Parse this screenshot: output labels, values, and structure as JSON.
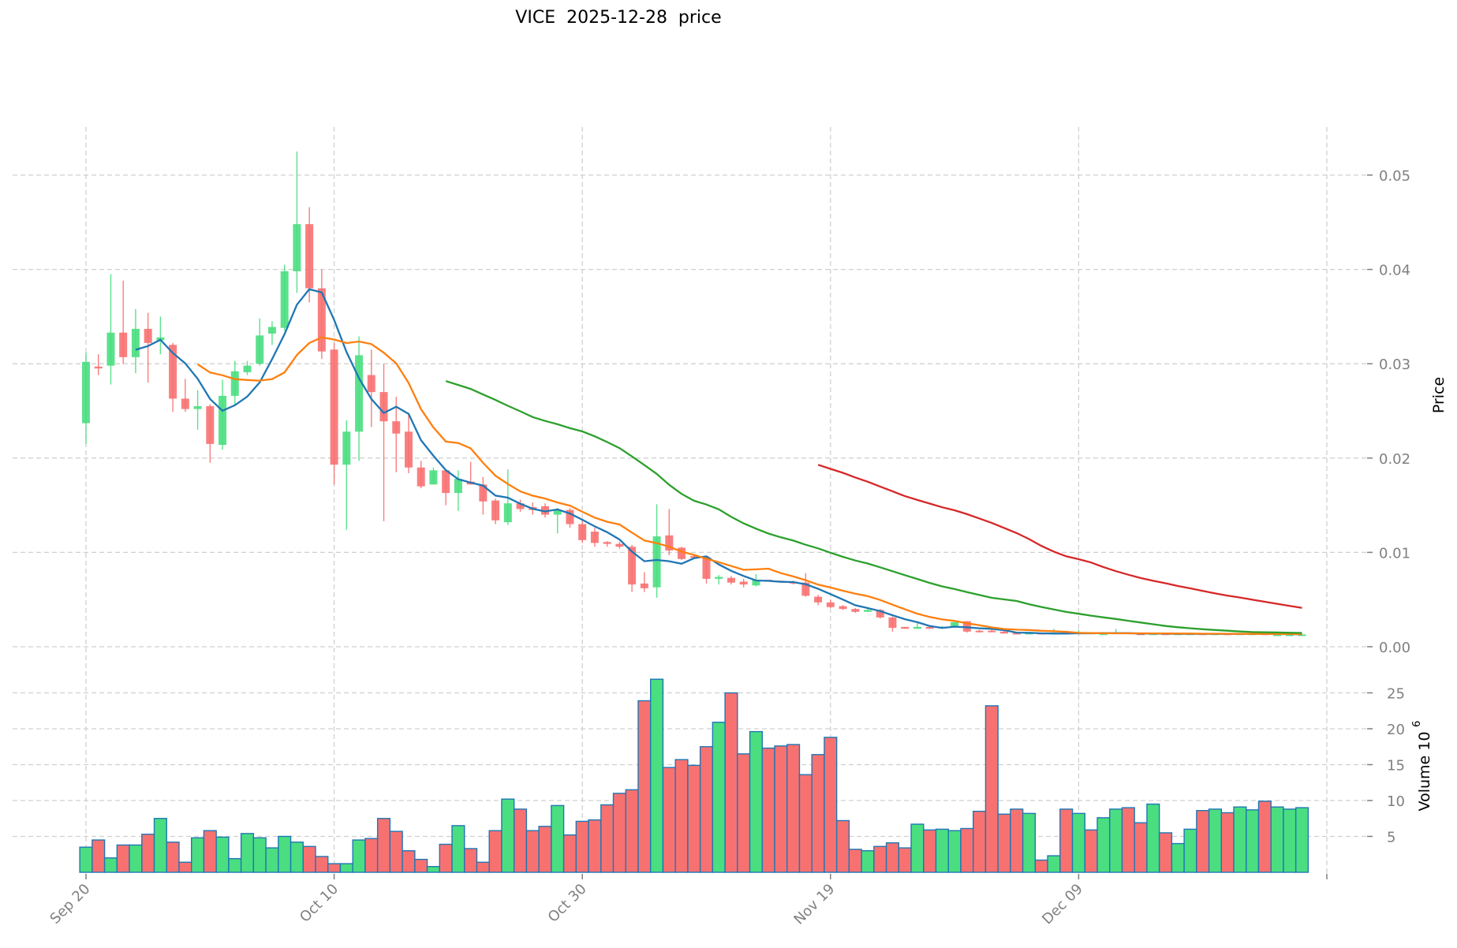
{
  "title": "VICE  2025-12-28  price",
  "chart_data": {
    "type": "candlestick",
    "title": "VICE  2025-12-28  price",
    "ticker": "VICE",
    "date": "2025-12-28",
    "start_date": "2025-09-20",
    "x_tick_labels": [
      {
        "label": "Sep 20",
        "index": 0
      },
      {
        "label": "Oct 10",
        "index": 20
      },
      {
        "label": "Oct 30",
        "index": 40
      },
      {
        "label": "Nov 19",
        "index": 60
      },
      {
        "label": "Dec 09",
        "index": 80
      }
    ],
    "price_axis": {
      "label": "Price",
      "ticks": [
        "0.00",
        "0.01",
        "0.02",
        "0.03",
        "0.04",
        "0.05"
      ],
      "ylim": [
        0,
        0.0545
      ],
      "grid": true,
      "position": "right"
    },
    "volume_axis": {
      "label": "Volume",
      "exponent_label": "10",
      "exponent": "6",
      "ticks": [
        "5",
        "10",
        "15",
        "20",
        "25"
      ],
      "ylim": [
        0,
        28.5
      ],
      "grid": true,
      "position": "right"
    },
    "colors": {
      "up": "#4ade80",
      "down": "#f87171",
      "volume_edge": "#1f77b4",
      "grid": "#d0d0d0",
      "tick_text": "#808080"
    },
    "moving_averages": [
      {
        "name": "MA5",
        "period": 5,
        "color": "#1f77b4"
      },
      {
        "name": "MA10",
        "period": 10,
        "color": "#ff7f0e"
      },
      {
        "name": "MA30",
        "period": 30,
        "color": "#2ca02c"
      },
      {
        "name": "MA60",
        "period": 60,
        "color": "#d62728"
      }
    ],
    "ohlc": [
      [
        0.0237,
        0.0312,
        0.0215,
        0.0302
      ],
      [
        0.0297,
        0.031,
        0.0288,
        0.0295
      ],
      [
        0.0298,
        0.0395,
        0.0278,
        0.0333
      ],
      [
        0.0333,
        0.0388,
        0.03,
        0.0307
      ],
      [
        0.0307,
        0.0358,
        0.029,
        0.0337
      ],
      [
        0.0337,
        0.0354,
        0.028,
        0.0322
      ],
      [
        0.0325,
        0.035,
        0.031,
        0.0328
      ],
      [
        0.032,
        0.0322,
        0.0249,
        0.0263
      ],
      [
        0.0263,
        0.0284,
        0.0249,
        0.0252
      ],
      [
        0.0252,
        0.0272,
        0.023,
        0.0255
      ],
      [
        0.0255,
        0.0257,
        0.0195,
        0.0215
      ],
      [
        0.0214,
        0.0283,
        0.0209,
        0.0266
      ],
      [
        0.0266,
        0.0303,
        0.0257,
        0.0292
      ],
      [
        0.0291,
        0.0303,
        0.0288,
        0.0298
      ],
      [
        0.03,
        0.0348,
        0.0298,
        0.033
      ],
      [
        0.0332,
        0.0345,
        0.032,
        0.0339
      ],
      [
        0.0338,
        0.0405,
        0.0335,
        0.0398
      ],
      [
        0.0398,
        0.0525,
        0.0375,
        0.0448
      ],
      [
        0.0448,
        0.0466,
        0.0365,
        0.038
      ],
      [
        0.038,
        0.04,
        0.0305,
        0.0313
      ],
      [
        0.0315,
        0.0322,
        0.0172,
        0.0193
      ],
      [
        0.0193,
        0.024,
        0.0124,
        0.0228
      ],
      [
        0.0228,
        0.0329,
        0.0197,
        0.0309
      ],
      [
        0.0288,
        0.0315,
        0.0233,
        0.027
      ],
      [
        0.027,
        0.03,
        0.0133,
        0.0239
      ],
      [
        0.0239,
        0.0265,
        0.0185,
        0.0226
      ],
      [
        0.0228,
        0.0248,
        0.0184,
        0.019
      ],
      [
        0.019,
        0.0197,
        0.0168,
        0.017
      ],
      [
        0.0172,
        0.019,
        0.0172,
        0.0187
      ],
      [
        0.0187,
        0.0187,
        0.015,
        0.0163
      ],
      [
        0.0163,
        0.0187,
        0.0144,
        0.0178
      ],
      [
        0.0175,
        0.0196,
        0.0172,
        0.0172
      ],
      [
        0.0172,
        0.018,
        0.014,
        0.0154
      ],
      [
        0.0155,
        0.0157,
        0.013,
        0.0134
      ],
      [
        0.0132,
        0.0188,
        0.0129,
        0.0152
      ],
      [
        0.0152,
        0.0156,
        0.0143,
        0.0146
      ],
      [
        0.0148,
        0.0153,
        0.014,
        0.0145
      ],
      [
        0.0149,
        0.0152,
        0.0137,
        0.014
      ],
      [
        0.014,
        0.0147,
        0.012,
        0.0145
      ],
      [
        0.0145,
        0.0147,
        0.0126,
        0.013
      ],
      [
        0.013,
        0.0136,
        0.011,
        0.0113
      ],
      [
        0.0122,
        0.0126,
        0.0106,
        0.011
      ],
      [
        0.0111,
        0.0112,
        0.0106,
        0.0109
      ],
      [
        0.0109,
        0.0111,
        0.0104,
        0.0106
      ],
      [
        0.0106,
        0.0108,
        0.0058,
        0.0066
      ],
      [
        0.0067,
        0.0079,
        0.0058,
        0.0062
      ],
      [
        0.0063,
        0.0151,
        0.0052,
        0.0117
      ],
      [
        0.0118,
        0.0146,
        0.0097,
        0.0102
      ],
      [
        0.0105,
        0.0106,
        0.0092,
        0.0093
      ],
      [
        0.0096,
        0.0098,
        0.0094,
        0.0095
      ],
      [
        0.0095,
        0.0096,
        0.0067,
        0.0072
      ],
      [
        0.0072,
        0.0076,
        0.0066,
        0.0074
      ],
      [
        0.0073,
        0.0075,
        0.0066,
        0.0068
      ],
      [
        0.0069,
        0.0072,
        0.0063,
        0.0066
      ],
      [
        0.0065,
        0.0077,
        0.0064,
        0.0071
      ],
      [
        0.0071,
        0.0071,
        0.0069,
        0.007
      ],
      [
        0.007,
        0.007,
        0.0068,
        0.0069
      ],
      [
        0.0069,
        0.007,
        0.0066,
        0.0067
      ],
      [
        0.0068,
        0.0078,
        0.0053,
        0.0054
      ],
      [
        0.0053,
        0.0055,
        0.0044,
        0.0047
      ],
      [
        0.0047,
        0.005,
        0.0041,
        0.0042
      ],
      [
        0.0043,
        0.0044,
        0.0039,
        0.004
      ],
      [
        0.004,
        0.0041,
        0.0036,
        0.0037
      ],
      [
        0.0037,
        0.004,
        0.0037,
        0.0039
      ],
      [
        0.0039,
        0.004,
        0.003,
        0.0031
      ],
      [
        0.0031,
        0.0032,
        0.0016,
        0.002
      ],
      [
        0.0021,
        0.0021,
        0.0019,
        0.0019
      ],
      [
        0.0019,
        0.0027,
        0.0019,
        0.0021
      ],
      [
        0.0021,
        0.0021,
        0.0019,
        0.0019
      ],
      [
        0.002,
        0.0022,
        0.0019,
        0.0021
      ],
      [
        0.0021,
        0.0028,
        0.0021,
        0.0026
      ],
      [
        0.0027,
        0.0027,
        0.0015,
        0.0016
      ],
      [
        0.0017,
        0.0018,
        0.0015,
        0.0016
      ],
      [
        0.0017,
        0.0018,
        0.0016,
        0.0016
      ],
      [
        0.0016,
        0.0017,
        0.0014,
        0.0014
      ],
      [
        0.0015,
        0.0015,
        0.0013,
        0.0013
      ],
      [
        0.0013,
        0.0015,
        0.0013,
        0.0015
      ],
      [
        0.0015,
        0.0015,
        0.0013,
        0.0013
      ],
      [
        0.0013,
        0.0019,
        0.0013,
        0.0015
      ],
      [
        0.0015,
        0.0017,
        0.0014,
        0.0014
      ],
      [
        0.0014,
        0.0018,
        0.0014,
        0.0015
      ],
      [
        0.0015,
        0.0015,
        0.0014,
        0.0014
      ],
      [
        0.0014,
        0.0015,
        0.0014,
        0.0014
      ],
      [
        0.0014,
        0.0019,
        0.0014,
        0.0015
      ],
      [
        0.0015,
        0.0015,
        0.0013,
        0.0014
      ],
      [
        0.0014,
        0.0014,
        0.0013,
        0.0013
      ],
      [
        0.0013,
        0.0014,
        0.0013,
        0.0014
      ],
      [
        0.0014,
        0.0014,
        0.0013,
        0.0013
      ],
      [
        0.0013,
        0.0014,
        0.0013,
        0.0014
      ],
      [
        0.0013,
        0.0014,
        0.0013,
        0.0014
      ],
      [
        0.0014,
        0.0014,
        0.0013,
        0.0013
      ],
      [
        0.0013,
        0.0014,
        0.0013,
        0.0014
      ],
      [
        0.0014,
        0.0014,
        0.0013,
        0.0013
      ],
      [
        0.0013,
        0.0014,
        0.0013,
        0.0014
      ],
      [
        0.0014,
        0.0014,
        0.0013,
        0.0014
      ],
      [
        0.0014,
        0.0014,
        0.0013,
        0.0013
      ],
      [
        0.0013,
        0.0014,
        0.0013,
        0.0013
      ],
      [
        0.0013,
        0.0014,
        0.0013,
        0.0013
      ],
      [
        0.0013,
        0.0014,
        0.0013,
        0.0013
      ]
    ],
    "volume_millions": [
      3.5,
      4.5,
      2.0,
      3.8,
      3.8,
      5.3,
      7.5,
      4.2,
      1.4,
      4.8,
      5.8,
      4.9,
      1.9,
      5.4,
      4.8,
      3.4,
      5.0,
      4.2,
      3.6,
      2.2,
      1.2,
      1.2,
      4.5,
      4.7,
      7.5,
      5.7,
      3.0,
      1.8,
      0.8,
      3.9,
      6.5,
      3.3,
      1.4,
      5.8,
      10.2,
      8.8,
      5.8,
      6.4,
      9.3,
      5.2,
      7.1,
      7.3,
      9.4,
      11.0,
      11.5,
      23.9,
      26.9,
      14.6,
      15.7,
      14.9,
      17.5,
      20.9,
      25.0,
      16.5,
      19.6,
      17.3,
      17.6,
      17.8,
      13.6,
      16.4,
      18.8,
      7.2,
      3.2,
      3.0,
      3.6,
      4.1,
      3.4,
      6.7,
      5.9,
      6.0,
      5.8,
      6.1,
      8.5,
      23.2,
      8.1,
      8.8,
      8.2,
      1.7,
      2.3,
      8.8,
      8.2,
      5.9,
      7.6,
      8.8,
      9.0,
      6.9,
      9.5,
      5.5,
      4.0,
      6.0,
      8.6,
      8.8,
      8.3,
      9.1,
      8.7,
      9.9,
      9.1,
      8.8,
      9.0
    ]
  }
}
